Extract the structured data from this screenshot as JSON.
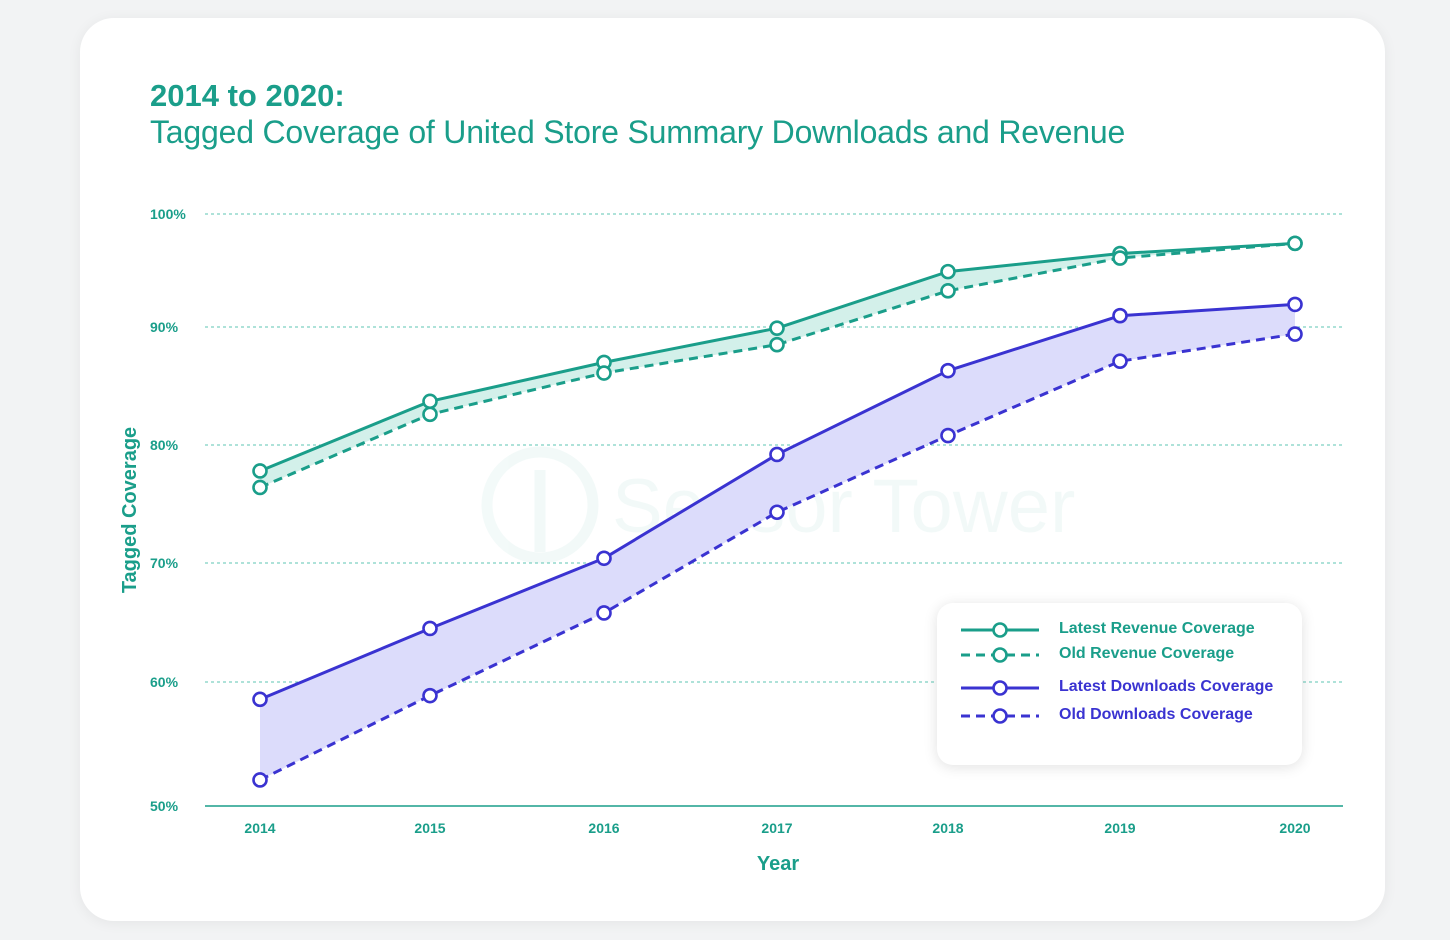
{
  "header": {
    "title": "2014 to 2020:",
    "subtitle": "Tagged Coverage of United Store Summary Downloads and Revenue"
  },
  "watermark": "Sensor Tower",
  "colors": {
    "revenue": "#1a9e8a",
    "downloads": "#3a33d1",
    "revenue_fill": "#d3f0ea",
    "downloads_fill": "#dcdcfb",
    "grid": "#5cc5b3"
  },
  "chart_data": {
    "type": "line",
    "xlabel": "Year",
    "ylabel": "Tagged Coverage",
    "categories": [
      "2014",
      "2015",
      "2016",
      "2017",
      "2018",
      "2019",
      "2020"
    ],
    "ylim": [
      50,
      100
    ],
    "yticks": [
      50,
      60,
      70,
      80,
      90,
      100
    ],
    "ytick_labels": [
      "50%",
      "60%",
      "70%",
      "80%",
      "90%",
      "100%"
    ],
    "grid": true,
    "legend_position": "bottom-right",
    "series": [
      {
        "name": "Latest Revenue Coverage",
        "values": [
          77.8,
          83.7,
          87.0,
          89.9,
          94.9,
          96.5,
          97.4
        ],
        "color": "#1a9e8a",
        "dashed": false
      },
      {
        "name": "Old Revenue Coverage",
        "values": [
          76.4,
          82.6,
          86.1,
          88.5,
          93.2,
          96.1,
          97.4
        ],
        "color": "#1a9e8a",
        "dashed": true
      },
      {
        "name": "Latest Downloads Coverage",
        "values": [
          58.6,
          64.5,
          70.4,
          79.2,
          86.3,
          91.0,
          92.0
        ],
        "color": "#3a33d1",
        "dashed": false
      },
      {
        "name": "Old Downloads Coverage",
        "values": [
          52.1,
          58.9,
          65.8,
          74.3,
          80.8,
          87.1,
          89.4
        ],
        "color": "#3a33d1",
        "dashed": true
      }
    ]
  }
}
